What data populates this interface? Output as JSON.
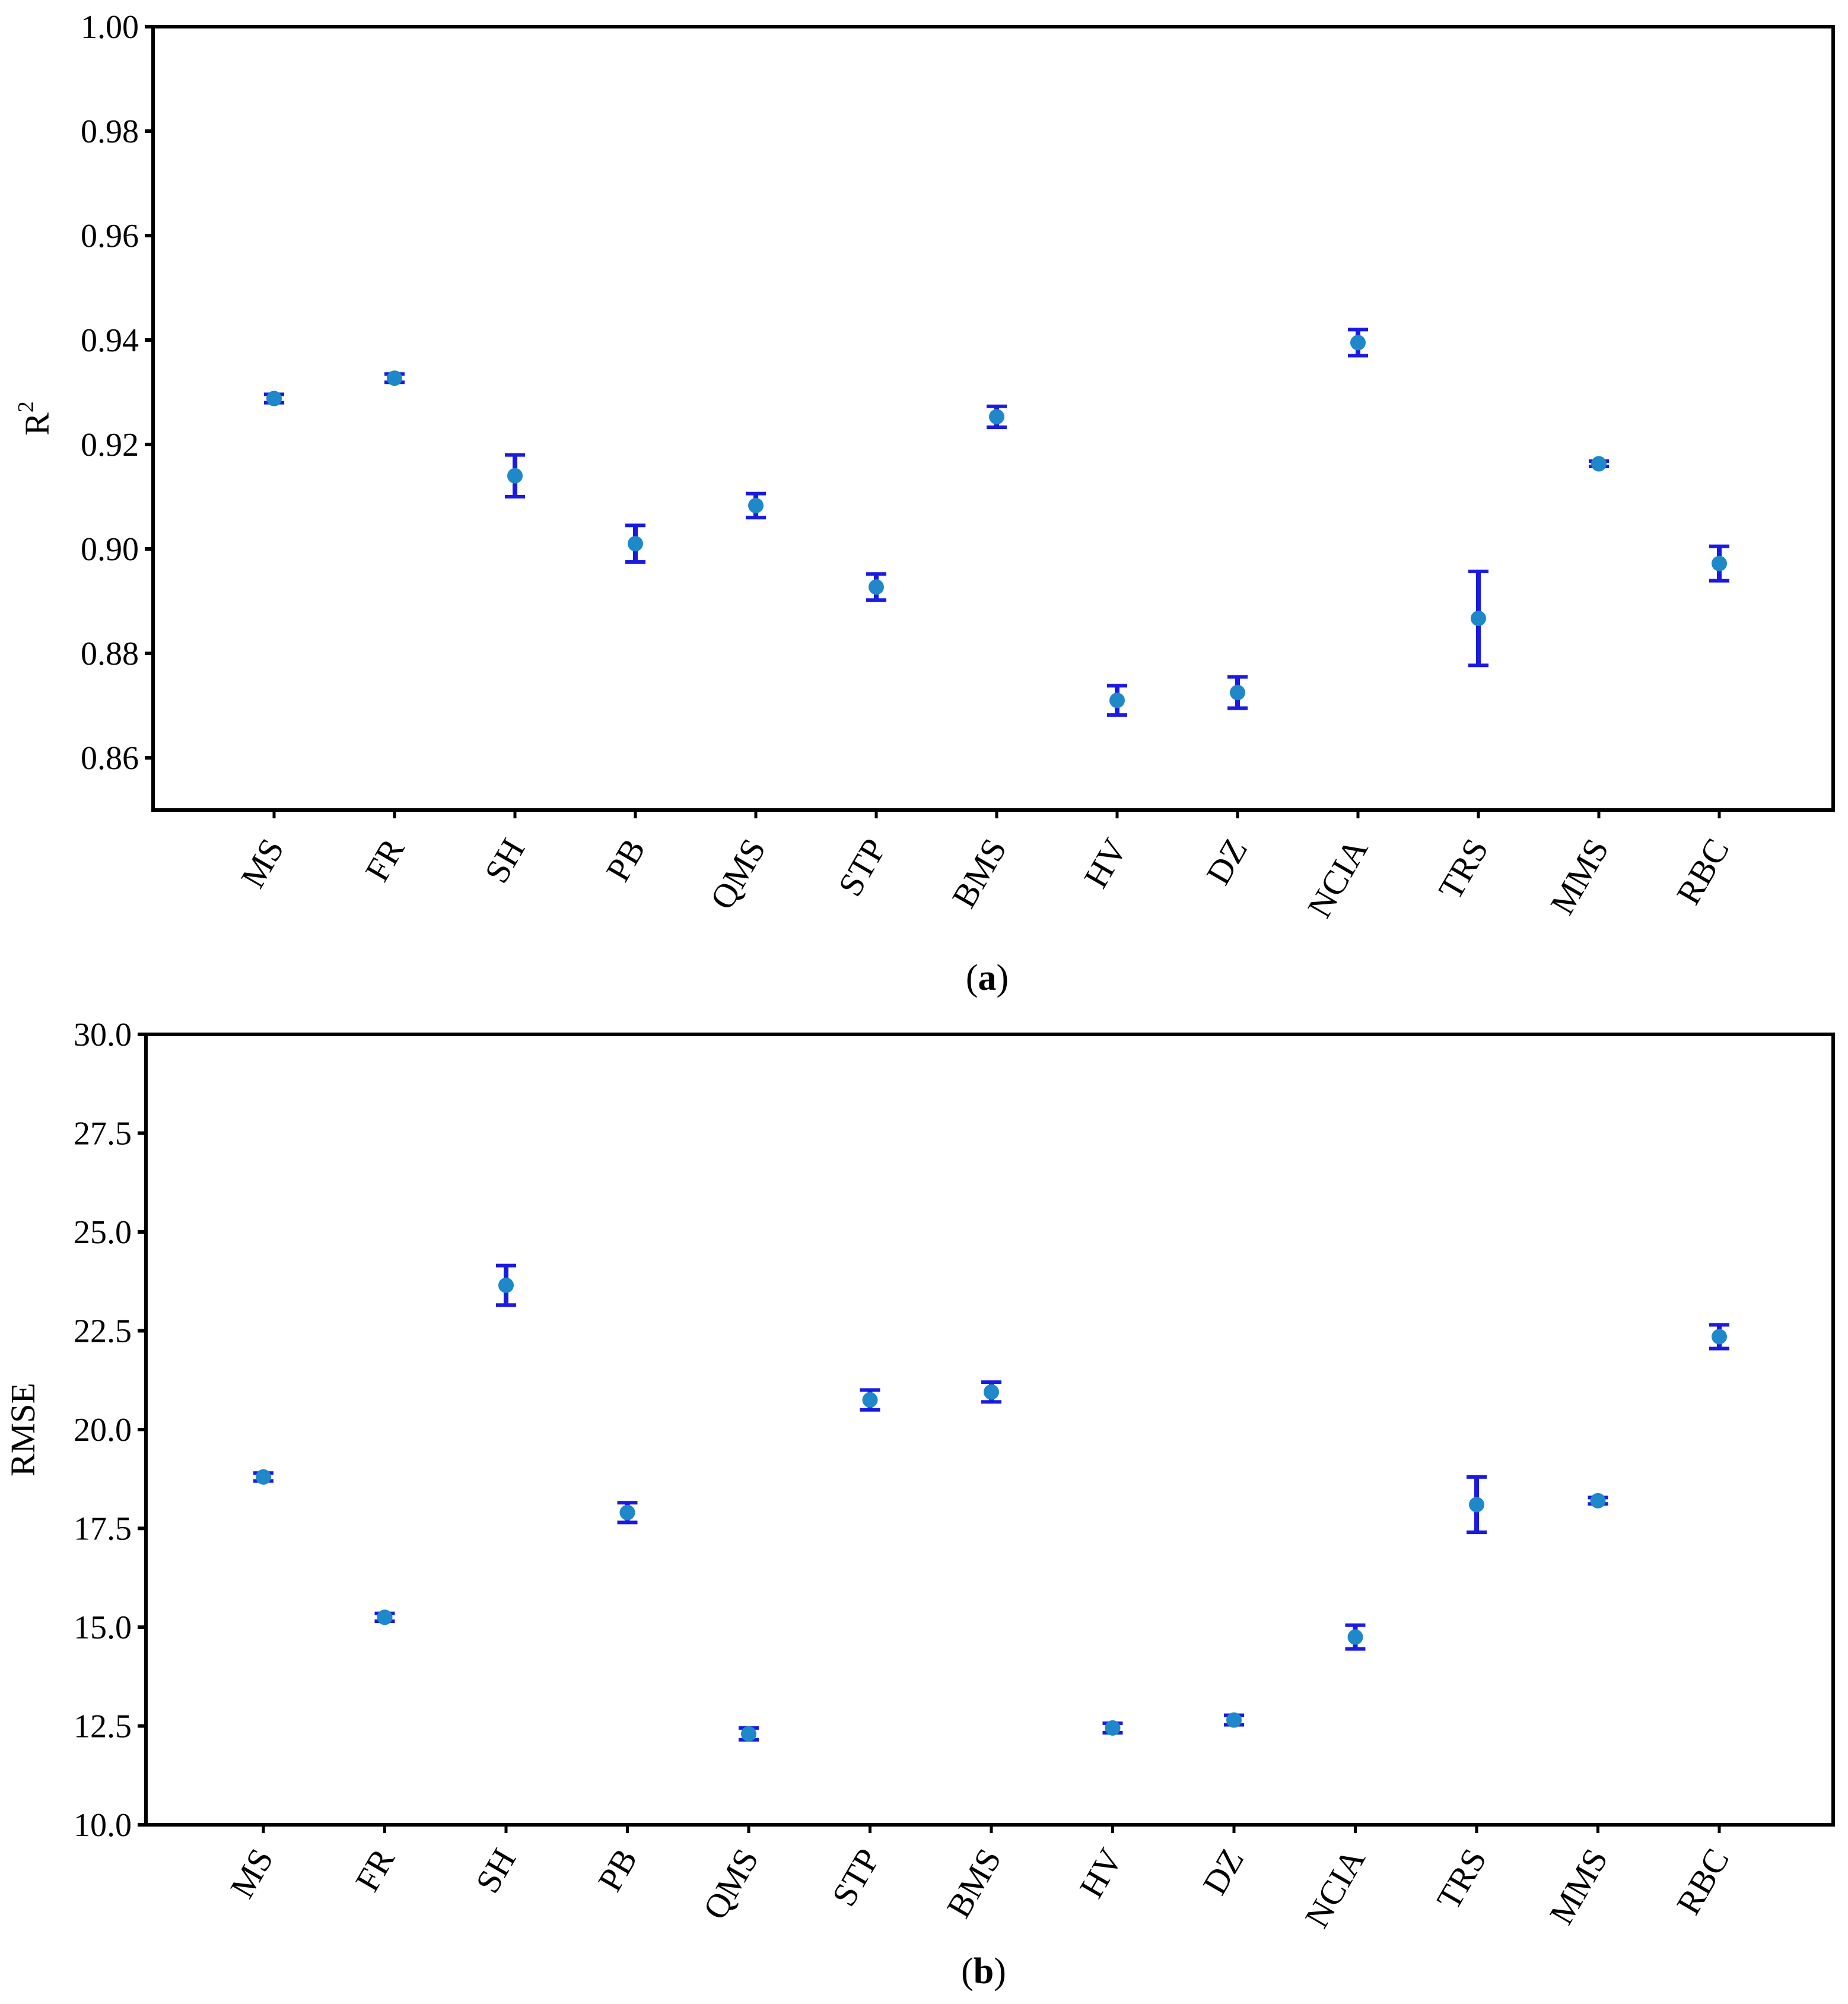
{
  "chart_data": [
    {
      "type": "scatter",
      "panel_label": "a",
      "ylabel": "R",
      "ylabel_superscript": "2",
      "ylim": [
        0.85,
        1.0
      ],
      "yticks": [
        "0.86",
        "0.88",
        "0.90",
        "0.92",
        "0.94",
        "0.96",
        "0.98",
        "1.00"
      ],
      "categories": [
        "MS",
        "FR",
        "SH",
        "PB",
        "QMS",
        "STP",
        "BMS",
        "HV",
        "DZ",
        "NCIA",
        "TRS",
        "MMS",
        "RBC"
      ],
      "values": [
        0.9288,
        0.9327,
        0.914,
        0.901,
        0.9083,
        0.8927,
        0.9253,
        0.871,
        0.8725,
        0.9395,
        0.8867,
        0.9163,
        0.8972
      ],
      "error": [
        0.0008,
        0.0008,
        0.004,
        0.0035,
        0.0023,
        0.0025,
        0.002,
        0.0028,
        0.003,
        0.0025,
        0.009,
        0.0005,
        0.0033
      ],
      "grid": false,
      "marker_color": "#1e88c8",
      "errorbar_color": "#1a1ae0"
    },
    {
      "type": "scatter",
      "panel_label": "b",
      "ylabel": "RMSE",
      "ylim": [
        10.0,
        30.0
      ],
      "yticks": [
        "10.0",
        "12.5",
        "15.0",
        "17.5",
        "20.0",
        "22.5",
        "25.0",
        "27.5",
        "30.0"
      ],
      "categories": [
        "MS",
        "FR",
        "SH",
        "PB",
        "QMS",
        "STP",
        "BMS",
        "HV",
        "DZ",
        "NCIA",
        "TRS",
        "MMS",
        "RBC"
      ],
      "values": [
        18.8,
        15.25,
        23.65,
        17.9,
        12.3,
        20.75,
        20.95,
        12.45,
        12.65,
        14.75,
        18.1,
        18.2,
        22.35
      ],
      "error": [
        0.1,
        0.1,
        0.5,
        0.25,
        0.15,
        0.25,
        0.25,
        0.12,
        0.12,
        0.3,
        0.7,
        0.08,
        0.3
      ],
      "grid": false,
      "marker_color": "#1e88c8",
      "errorbar_color": "#1a1ae0"
    }
  ]
}
